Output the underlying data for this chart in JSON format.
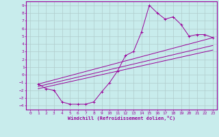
{
  "xlabel": "Windchill (Refroidissement éolien,°C)",
  "bg_color": "#c8ecec",
  "grid_color": "#b0cccc",
  "line_color": "#990099",
  "xlim": [
    -0.5,
    23.5
  ],
  "ylim": [
    -4.5,
    9.5
  ],
  "xticks": [
    0,
    1,
    2,
    3,
    4,
    5,
    6,
    7,
    8,
    9,
    10,
    11,
    12,
    13,
    14,
    15,
    16,
    17,
    18,
    19,
    20,
    21,
    22,
    23
  ],
  "yticks": [
    -4,
    -3,
    -2,
    -1,
    0,
    1,
    2,
    3,
    4,
    5,
    6,
    7,
    8,
    9
  ],
  "line1_x": [
    1,
    2,
    3,
    4,
    5,
    6,
    7,
    8,
    9,
    10,
    11,
    12,
    13,
    14,
    15,
    16,
    17,
    18,
    19,
    20,
    21,
    22,
    23
  ],
  "line1_y": [
    -1.2,
    -1.8,
    -2.0,
    -3.5,
    -3.8,
    -3.8,
    -3.8,
    -3.5,
    -2.2,
    -1.0,
    0.5,
    2.5,
    3.0,
    5.5,
    9.0,
    8.0,
    7.2,
    7.5,
    6.5,
    5.0,
    5.2,
    5.2,
    4.8
  ],
  "line2_x": [
    1,
    23
  ],
  "line2_y": [
    -1.2,
    4.8
  ],
  "line3_x": [
    1,
    23
  ],
  "line3_y": [
    -1.5,
    3.8
  ],
  "line4_x": [
    1,
    23
  ],
  "line4_y": [
    -1.8,
    3.2
  ]
}
